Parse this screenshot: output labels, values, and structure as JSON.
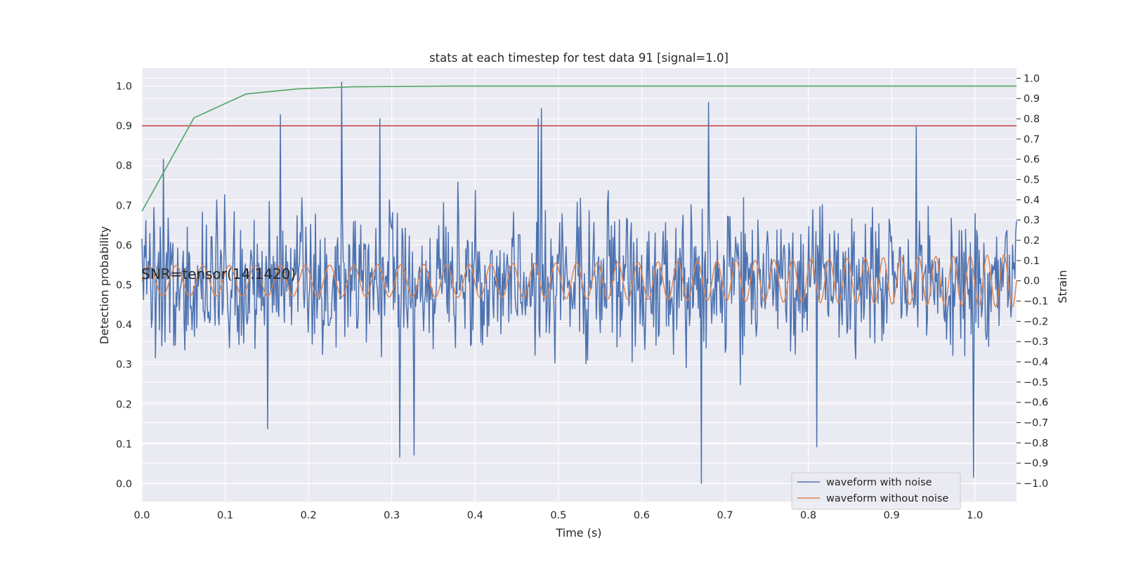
{
  "chart_data": {
    "type": "line",
    "title": "stats at each timestep for test data 91 [signal=1.0]",
    "xlabel": "Time (s)",
    "ylabel_left": "Detection probability",
    "ylabel_right": "Strain",
    "xlim": [
      0.0,
      1.05
    ],
    "ylim_left": [
      -0.045,
      1.045
    ],
    "ylim_right": [
      -1.09,
      1.05
    ],
    "xticks": [
      0.0,
      0.1,
      0.2,
      0.3,
      0.4,
      0.5,
      0.6,
      0.7,
      0.8,
      0.9,
      1.0
    ],
    "xtick_labels": [
      "0.0",
      "0.1",
      "0.2",
      "0.3",
      "0.4",
      "0.5",
      "0.6",
      "0.7",
      "0.8",
      "0.9",
      "1.0"
    ],
    "yticks_left": [
      0.0,
      0.1,
      0.2,
      0.3,
      0.4,
      0.5,
      0.6,
      0.7,
      0.8,
      0.9,
      1.0
    ],
    "ytick_labels_left": [
      "0.0",
      "0.1",
      "0.2",
      "0.3",
      "0.4",
      "0.5",
      "0.6",
      "0.7",
      "0.8",
      "0.9",
      "1.0"
    ],
    "yticks_right": [
      -1.0,
      -0.9,
      -0.8,
      -0.7,
      -0.6,
      -0.5,
      -0.4,
      -0.3,
      -0.2,
      -0.1,
      0.0,
      0.1,
      0.2,
      0.3,
      0.4,
      0.5,
      0.6,
      0.7,
      0.8,
      0.9,
      1.0
    ],
    "ytick_labels_right": [
      "−1.0",
      "−0.9",
      "−0.8",
      "−0.7",
      "−0.6",
      "−0.5",
      "−0.4",
      "−0.3",
      "−0.2",
      "−0.1",
      "0.0",
      "0.1",
      "0.2",
      "0.3",
      "0.4",
      "0.5",
      "0.6",
      "0.7",
      "0.8",
      "0.9",
      "1.0"
    ],
    "grid": true,
    "legend_position": "lower-right",
    "annotation": "SNR=tensor(14.1420)",
    "threshold": {
      "axis": "left",
      "y": 0.9,
      "color": "#c44e52"
    },
    "detection_probability": {
      "axis": "left",
      "color": "#55a868",
      "x": [
        0.0,
        0.0625,
        0.125,
        0.1875,
        0.25,
        0.3125,
        0.375,
        0.4375,
        0.5,
        1.05
      ],
      "y": [
        0.685,
        0.92,
        0.98,
        0.993,
        0.998,
        0.999,
        1.0,
        1.0,
        1.0,
        1.0
      ]
    },
    "series": [
      {
        "name": "waveform with noise",
        "axis": "right",
        "color": "#4c72b0",
        "noise_amplitude": 0.28,
        "peak_points": [
          [
            0.24,
            0.98
          ],
          [
            0.026,
            0.6
          ],
          [
            0.166,
            0.82
          ],
          [
            0.286,
            0.8
          ],
          [
            0.476,
            0.8
          ],
          [
            0.48,
            0.85
          ],
          [
            0.68,
            0.88
          ],
          [
            0.672,
            -1.0
          ],
          [
            0.31,
            -0.87
          ],
          [
            0.327,
            -0.86
          ],
          [
            0.998,
            -0.97
          ],
          [
            0.151,
            -0.73
          ],
          [
            0.93,
            0.76
          ],
          [
            0.81,
            -0.82
          ]
        ]
      },
      {
        "name": "waveform without noise",
        "axis": "right",
        "color": "#dd8452",
        "amplitude_start": 0.075,
        "amplitude_end": 0.13,
        "cycles": 42
      }
    ]
  }
}
